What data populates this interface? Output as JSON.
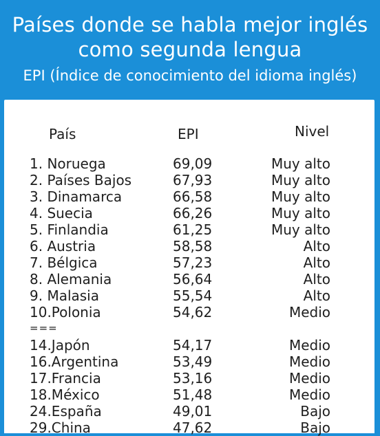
{
  "header": {
    "title": "Países donde se habla mejor inglés\ncomo segunda lengua",
    "subtitle": "EPI (Índice de conocimiento del idioma inglés)"
  },
  "table": {
    "columns": {
      "country": "País",
      "epi": "EPI",
      "level": "Nivel"
    },
    "rows_top": [
      {
        "country": "1. Noruega",
        "epi": "69,09",
        "level": "Muy alto"
      },
      {
        "country": "2. Países Bajos",
        "epi": "67,93",
        "level": "Muy alto"
      },
      {
        "country": "3. Dinamarca",
        "epi": "66,58",
        "level": "Muy alto"
      },
      {
        "country": "4. Suecia",
        "epi": "66,26",
        "level": "Muy alto"
      },
      {
        "country": "5. Finlandia",
        "epi": "61,25",
        "level": "Muy alto"
      },
      {
        "country": "6. Austria",
        "epi": "58,58",
        "level": "Alto"
      },
      {
        "country": "7. Bélgica",
        "epi": "57,23",
        "level": "Alto"
      },
      {
        "country": "8. Alemania",
        "epi": "56,64",
        "level": "Alto"
      },
      {
        "country": "9. Malasia",
        "epi": "55,54",
        "level": "Alto"
      },
      {
        "country": "10.Polonia",
        "epi": "54,62",
        "level": "Medio"
      }
    ],
    "separator": "===",
    "rows_bottom": [
      {
        "country": "14.Japón",
        "epi": "54,17",
        "level": "Medio"
      },
      {
        "country": "16.Argentina",
        "epi": "53,49",
        "level": "Medio"
      },
      {
        "country": "17.Francia",
        "epi": "53,16",
        "level": "Medio"
      },
      {
        "country": "18.México",
        "epi": "51,48",
        "level": "Medio"
      },
      {
        "country": "24.España",
        "epi": "49,01",
        "level": "Bajo"
      },
      {
        "country": "29.China",
        "epi": "47,62",
        "level": "Bajo"
      }
    ]
  },
  "colors": {
    "header_bg": "#1b8fd8",
    "card_bg": "#ffffff",
    "text": "#1e1e1e"
  }
}
